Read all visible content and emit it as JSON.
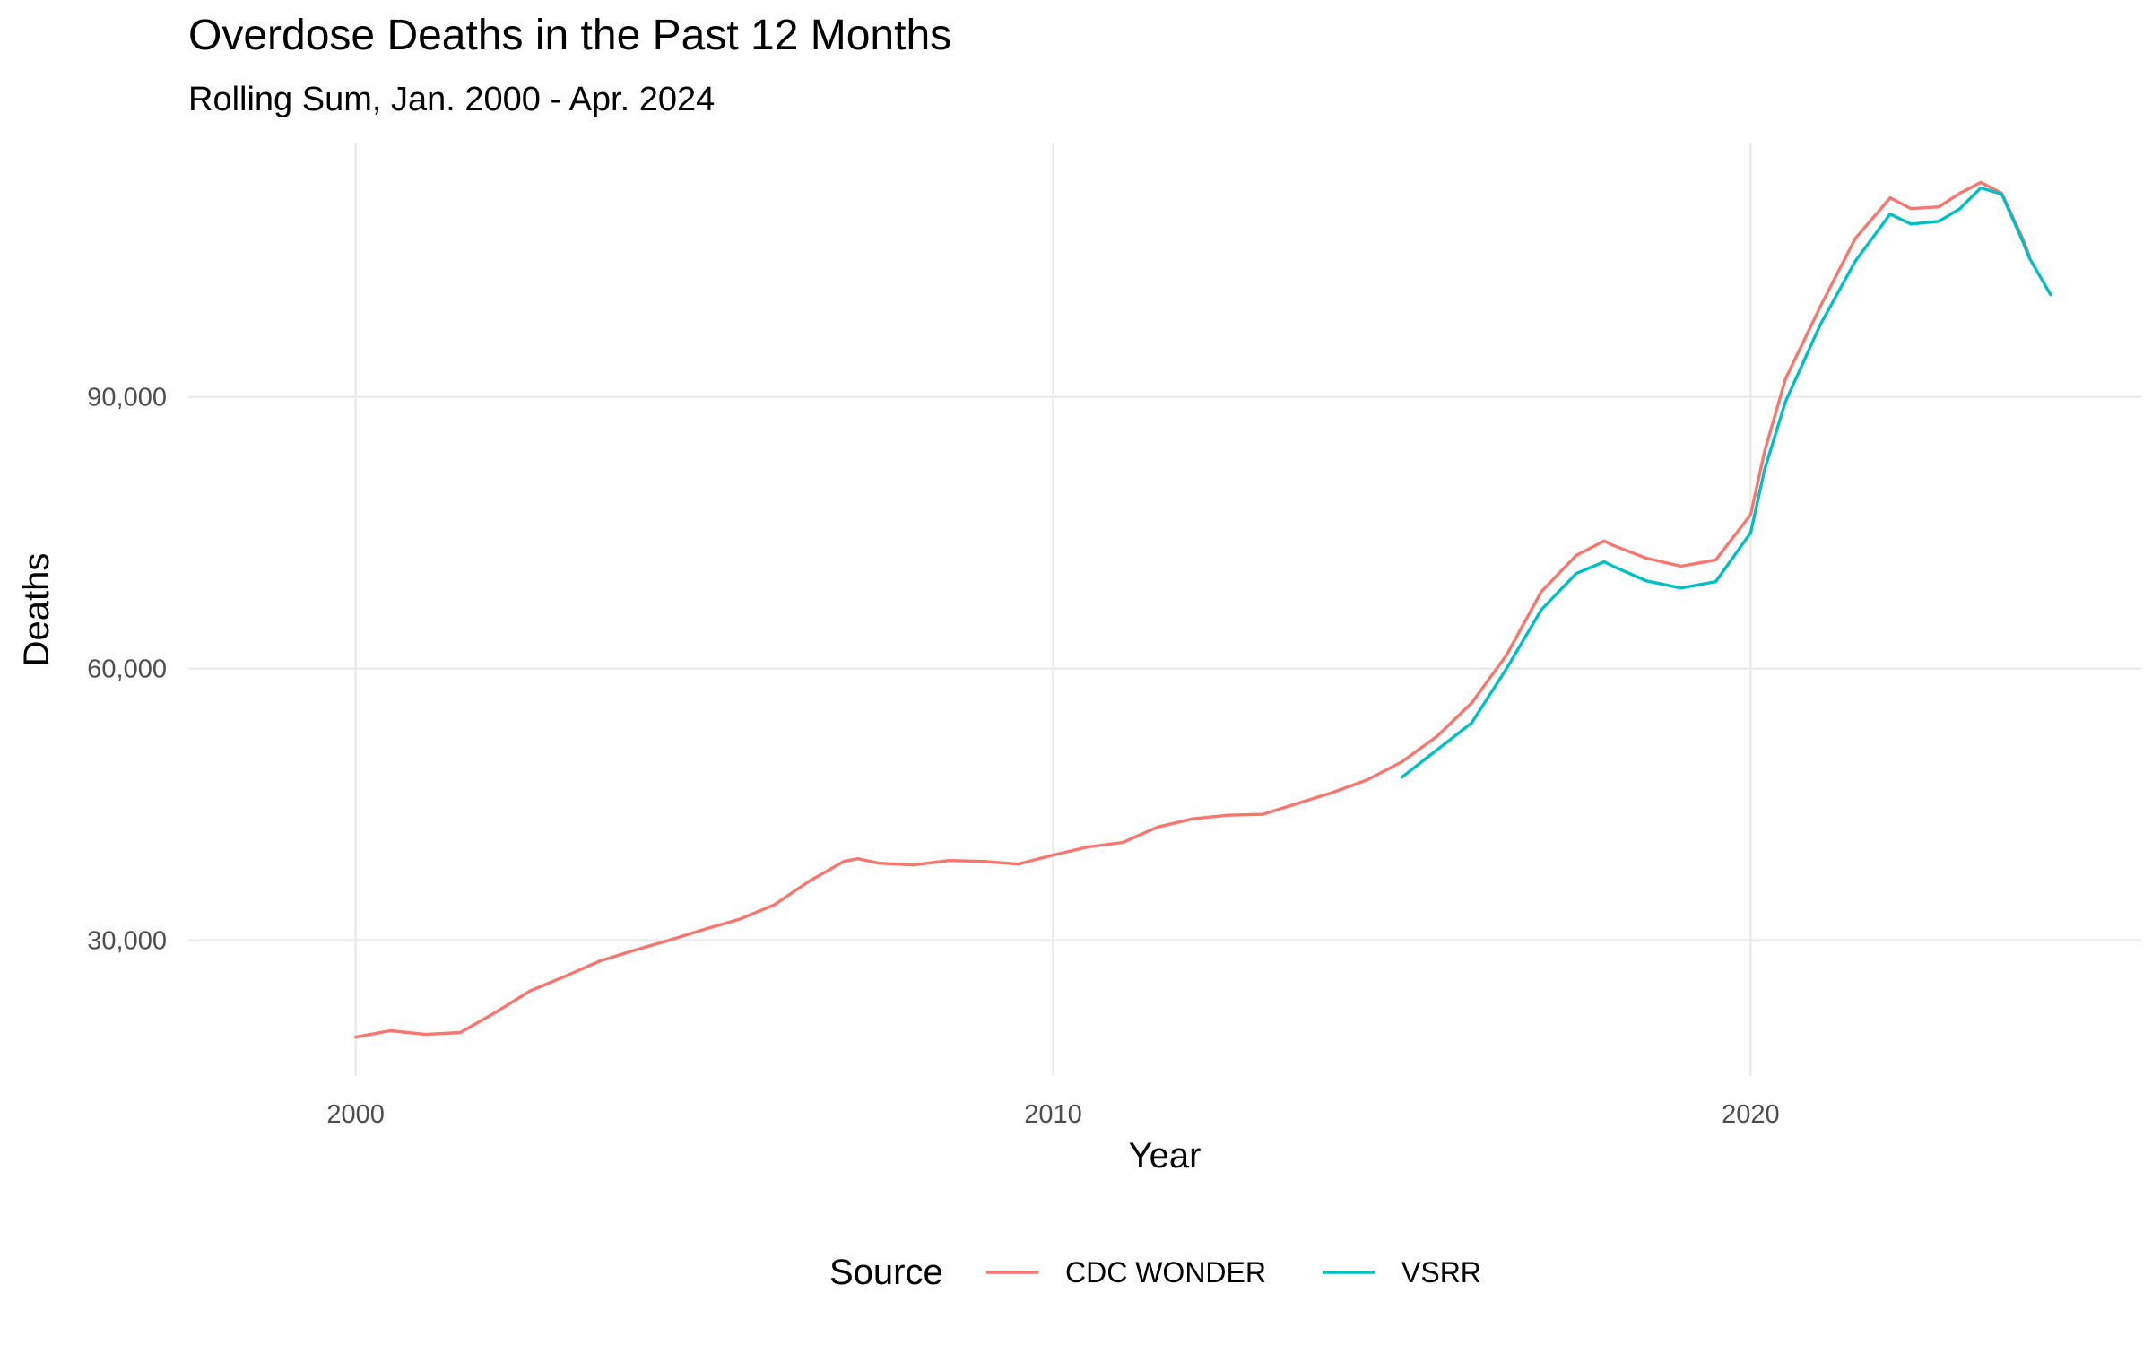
{
  "chart_data": {
    "type": "line",
    "title": "Overdose Deaths in the Past 12 Months",
    "subtitle": "Rolling Sum, Jan. 2000 - Apr. 2024",
    "xlabel": "Year",
    "ylabel": "Deaths",
    "xlim": [
      1997.6,
      2025.6
    ],
    "ylim": [
      15000,
      118000
    ],
    "x_ticks": [
      2000,
      2010,
      2020
    ],
    "x_tick_labels": [
      "2000",
      "2010",
      "2020"
    ],
    "y_ticks": [
      30000,
      60000,
      90000
    ],
    "y_tick_labels": [
      "30,000",
      "60,000",
      "90,000"
    ],
    "grid": true,
    "legend": {
      "title": "Source",
      "position": "bottom"
    },
    "series": [
      {
        "name": "CDC WONDER",
        "color": "#F8766D",
        "points": [
          [
            2000.0,
            19300
          ],
          [
            2000.5,
            20000
          ],
          [
            2001.0,
            19600
          ],
          [
            2001.5,
            19800
          ],
          [
            2002.0,
            22000
          ],
          [
            2002.5,
            24400
          ],
          [
            2003.0,
            26000
          ],
          [
            2003.5,
            27700
          ],
          [
            2004.0,
            28900
          ],
          [
            2004.5,
            30000
          ],
          [
            2005.0,
            31200
          ],
          [
            2005.5,
            32300
          ],
          [
            2006.0,
            33900
          ],
          [
            2006.5,
            36500
          ],
          [
            2007.0,
            38700
          ],
          [
            2007.2,
            39000
          ],
          [
            2007.5,
            38500
          ],
          [
            2008.0,
            38300
          ],
          [
            2008.5,
            38800
          ],
          [
            2009.0,
            38700
          ],
          [
            2009.5,
            38400
          ],
          [
            2010.0,
            39400
          ],
          [
            2010.5,
            40300
          ],
          [
            2011.0,
            40800
          ],
          [
            2011.5,
            42500
          ],
          [
            2012.0,
            43400
          ],
          [
            2012.5,
            43800
          ],
          [
            2013.0,
            43900
          ],
          [
            2013.5,
            45100
          ],
          [
            2014.0,
            46300
          ],
          [
            2014.5,
            47700
          ],
          [
            2015.0,
            49700
          ],
          [
            2015.5,
            52500
          ],
          [
            2016.0,
            56200
          ],
          [
            2016.5,
            61500
          ],
          [
            2017.0,
            68500
          ],
          [
            2017.5,
            72500
          ],
          [
            2017.9,
            74100
          ],
          [
            2018.0,
            73700
          ],
          [
            2018.5,
            72200
          ],
          [
            2019.0,
            71300
          ],
          [
            2019.5,
            72000
          ],
          [
            2020.0,
            77000
          ],
          [
            2020.2,
            84000
          ],
          [
            2020.5,
            92000
          ],
          [
            2021.0,
            100000
          ],
          [
            2021.5,
            107500
          ],
          [
            2022.0,
            112000
          ],
          [
            2022.3,
            110800
          ],
          [
            2022.7,
            111000
          ],
          [
            2023.0,
            112500
          ],
          [
            2023.3,
            113700
          ],
          [
            2023.6,
            112500
          ],
          [
            2023.9,
            107500
          ],
          [
            2024.0,
            105500
          ]
        ]
      },
      {
        "name": "VSRR",
        "color": "#00BFC4",
        "points": [
          [
            2015.0,
            48000
          ],
          [
            2015.5,
            51000
          ],
          [
            2016.0,
            54000
          ],
          [
            2016.5,
            60000
          ],
          [
            2017.0,
            66500
          ],
          [
            2017.5,
            70500
          ],
          [
            2017.9,
            71800
          ],
          [
            2018.0,
            71400
          ],
          [
            2018.5,
            69700
          ],
          [
            2019.0,
            68900
          ],
          [
            2019.5,
            69600
          ],
          [
            2020.0,
            75000
          ],
          [
            2020.2,
            82000
          ],
          [
            2020.5,
            89500
          ],
          [
            2021.0,
            98000
          ],
          [
            2021.5,
            105000
          ],
          [
            2022.0,
            110200
          ],
          [
            2022.3,
            109100
          ],
          [
            2022.7,
            109400
          ],
          [
            2023.0,
            110800
          ],
          [
            2023.3,
            113100
          ],
          [
            2023.6,
            112400
          ],
          [
            2023.9,
            107200
          ],
          [
            2024.0,
            105300
          ],
          [
            2024.3,
            101300
          ]
        ]
      }
    ]
  }
}
